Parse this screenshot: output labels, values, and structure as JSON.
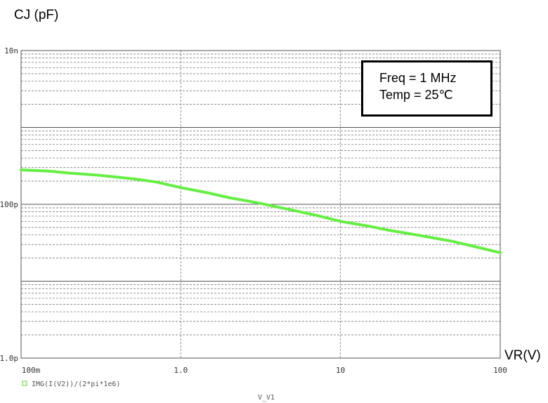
{
  "header": {
    "y_title": "CJ (pF)"
  },
  "annotation": {
    "line1": "Freq = 1 MHz",
    "line2": "Temp = 25℃"
  },
  "legend": {
    "marker_color": "#66cc44",
    "label": "IMG(I(V2))/(2*pi*1e6)"
  },
  "chart_data": {
    "type": "line",
    "title": "",
    "xlabel": "V_V1",
    "ylabel": "CJ (pF)",
    "x_unit_label": "VR(V)",
    "x_scale": "log",
    "y_scale": "log",
    "xlim": [
      0.1,
      100
    ],
    "ylim": [
      1e-12,
      1e-08
    ],
    "x_ticks": [
      "100m",
      "1.0",
      "10",
      "100"
    ],
    "y_ticks": [
      "10n",
      "100p",
      "1.0p"
    ],
    "grid": true,
    "series": [
      {
        "name": "IMG(I(V2))/(2*pi*1e6)",
        "color": "#66ee44",
        "x": [
          0.1,
          0.15,
          0.2,
          0.3,
          0.5,
          0.7,
          1.0,
          1.5,
          2.0,
          3.0,
          5.0,
          7.0,
          10,
          15,
          20,
          30,
          50,
          70,
          100
        ],
        "y": [
          2.8e-10,
          2.7e-10,
          2.55e-10,
          2.4e-10,
          2.15e-10,
          1.95e-10,
          1.65e-10,
          1.4e-10,
          1.22e-10,
          1.05e-10,
          8.4e-11,
          7.2e-11,
          6e-11,
          5.2e-11,
          4.6e-11,
          4e-11,
          3.3e-11,
          2.8e-11,
          2.35e-11
        ]
      }
    ]
  }
}
